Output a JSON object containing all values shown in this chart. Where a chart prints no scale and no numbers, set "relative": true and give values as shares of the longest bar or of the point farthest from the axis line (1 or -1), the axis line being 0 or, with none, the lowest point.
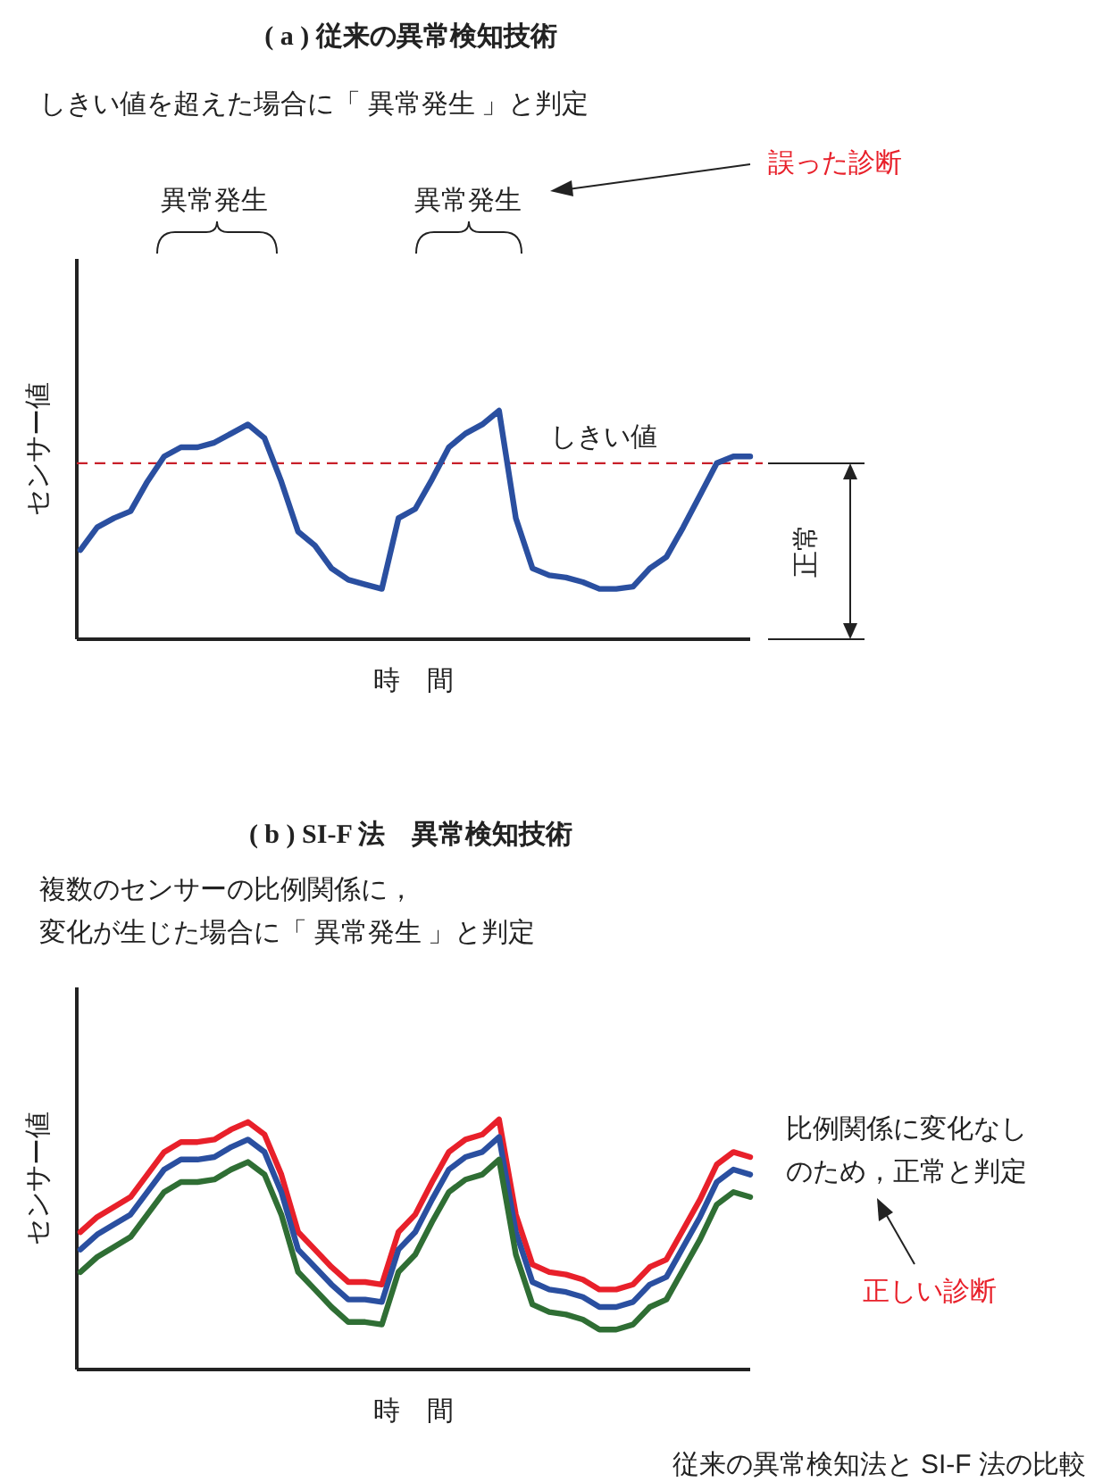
{
  "chart_data": [
    {
      "type": "line",
      "title": "( a )  従来の異常検知技術",
      "subtitle": "しきい値を超えた場合に「 異常発生 」と判定",
      "xlabel": "時　間",
      "ylabel": "センサー値",
      "relative": true,
      "categories": [
        null,
        null,
        null,
        null,
        null,
        null,
        null,
        null,
        null,
        null,
        null,
        null,
        null,
        null,
        null,
        null,
        null,
        null,
        null,
        null,
        null,
        null,
        null,
        null,
        null,
        null,
        null,
        null,
        null,
        null,
        null,
        null,
        null,
        null,
        null,
        null,
        null,
        null,
        null,
        null,
        null
      ],
      "series": [
        {
          "color": "#2a4fa0",
          "values": [
            0.39,
            0.49,
            0.53,
            0.56,
            0.69,
            0.8,
            0.84,
            0.84,
            0.86,
            0.9,
            0.94,
            0.88,
            0.69,
            0.47,
            0.41,
            0.31,
            0.26,
            0.24,
            0.22,
            0.53,
            0.57,
            0.7,
            0.84,
            0.9,
            0.94,
            1.0,
            0.53,
            0.31,
            0.28,
            0.27,
            0.25,
            0.22,
            0.22,
            0.23,
            0.31,
            0.36,
            0.49,
            0.63,
            0.77,
            0.8,
            0.8
          ]
        }
      ],
      "ref_lines": [
        {
          "axis": "y",
          "value": 0.77,
          "label": "しきい値",
          "color": "#c8202a",
          "line_style": "dashed"
        }
      ],
      "annotations": [
        "異常発生",
        "異常発生",
        "誤った診断",
        "正常"
      ]
    },
    {
      "type": "line",
      "title": "( b )  SI-F 法　異常検知技術",
      "subtitle": "複数のセンサーの比例関係に，変化が生じた場合に「 異常発生 」と判定",
      "xlabel": "時　間",
      "ylabel": "センサー値",
      "relative": true,
      "categories": [
        null,
        null,
        null,
        null,
        null,
        null,
        null,
        null,
        null,
        null,
        null,
        null,
        null,
        null,
        null,
        null,
        null,
        null,
        null,
        null,
        null,
        null,
        null,
        null,
        null,
        null,
        null,
        null,
        null,
        null,
        null,
        null,
        null,
        null,
        null,
        null,
        null,
        null,
        null,
        null,
        null
      ],
      "series": [
        {
          "color": "#e8202a",
          "values": [
            0.55,
            0.61,
            0.65,
            0.69,
            0.78,
            0.87,
            0.91,
            0.91,
            0.92,
            0.96,
            0.99,
            0.94,
            0.78,
            0.55,
            0.48,
            0.41,
            0.35,
            0.35,
            0.34,
            0.55,
            0.62,
            0.75,
            0.87,
            0.92,
            0.94,
            1.0,
            0.62,
            0.42,
            0.39,
            0.38,
            0.36,
            0.32,
            0.32,
            0.34,
            0.41,
            0.44,
            0.56,
            0.68,
            0.82,
            0.87,
            0.85
          ]
        },
        {
          "color": "#2a4fa0",
          "values": [
            0.48,
            0.54,
            0.58,
            0.62,
            0.71,
            0.8,
            0.84,
            0.84,
            0.85,
            0.89,
            0.92,
            0.87,
            0.71,
            0.48,
            0.41,
            0.34,
            0.28,
            0.28,
            0.27,
            0.48,
            0.55,
            0.68,
            0.8,
            0.85,
            0.87,
            0.93,
            0.55,
            0.35,
            0.32,
            0.31,
            0.29,
            0.25,
            0.25,
            0.27,
            0.34,
            0.37,
            0.49,
            0.61,
            0.75,
            0.8,
            0.78
          ]
        },
        {
          "color": "#2f6e34",
          "values": [
            0.39,
            0.45,
            0.49,
            0.53,
            0.62,
            0.71,
            0.75,
            0.75,
            0.76,
            0.8,
            0.83,
            0.78,
            0.62,
            0.39,
            0.32,
            0.25,
            0.19,
            0.19,
            0.18,
            0.39,
            0.46,
            0.59,
            0.71,
            0.76,
            0.78,
            0.84,
            0.46,
            0.26,
            0.23,
            0.22,
            0.2,
            0.16,
            0.16,
            0.18,
            0.25,
            0.28,
            0.4,
            0.52,
            0.66,
            0.71,
            0.69
          ]
        }
      ],
      "annotations": [
        "比例関係に変化なしのため，正常と判定",
        "正しい診断",
        "従来の異常検知法と SI-F 法の比較"
      ]
    }
  ]
}
